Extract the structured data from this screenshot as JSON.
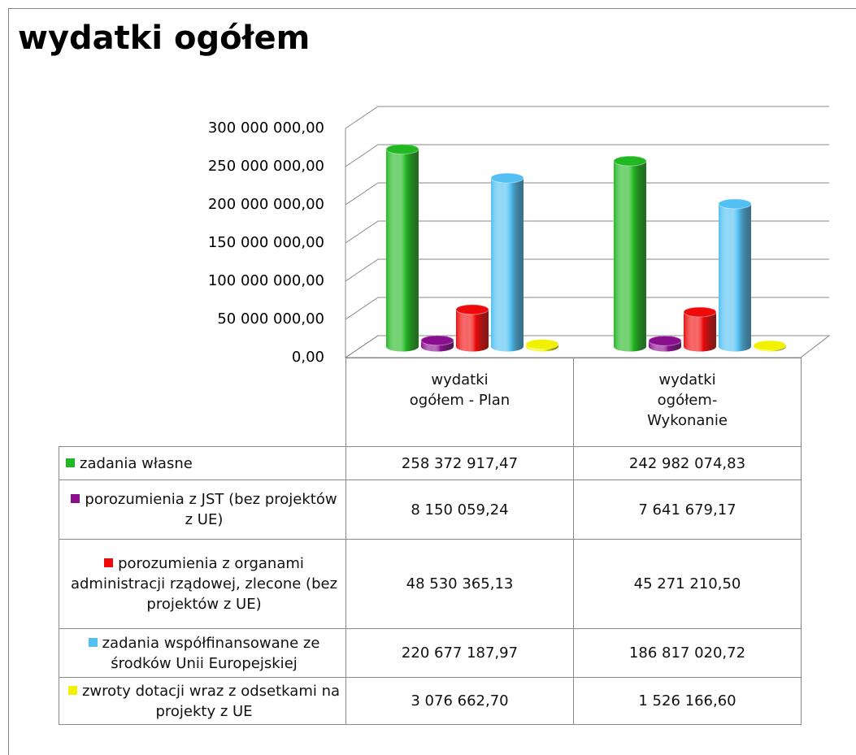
{
  "chart_data": {
    "type": "cylinder_bar",
    "title": "wydatki ogółem",
    "categories": [
      "wydatki ogółem -  Plan",
      "wydatki ogółem- Wykonanie"
    ],
    "series": [
      {
        "name": "zadania własne",
        "color": "#22b822",
        "values": [
          258372917.47,
          242982074.83
        ],
        "value_labels": [
          "258 372 917,47",
          "242 982 074,83"
        ]
      },
      {
        "name": "porozumienia z JST (bez projektów z UE)",
        "color": "#8a0f8f",
        "values": [
          8150059.24,
          7641679.17
        ],
        "value_labels": [
          "8 150 059,24",
          "7 641 679,17"
        ]
      },
      {
        "name": "porozumienia z organami administracji rządowej, zlecone (bez projektów z UE)",
        "color": "#ee0a0a",
        "values": [
          48530365.13,
          45271210.5
        ],
        "value_labels": [
          "48 530 365,13",
          "45 271 210,50"
        ]
      },
      {
        "name": "zadania współfinansowane ze środków Unii Europejskiej",
        "color": "#52c0f2",
        "values": [
          220677187.97,
          186817020.72
        ],
        "value_labels": [
          "220 677 187,97",
          "186 817 020,72"
        ]
      },
      {
        "name": "zwroty dotacji wraz z odsetkami na projekty z UE",
        "color": "#f2f200",
        "values": [
          3076662.7,
          1526166.6
        ],
        "value_labels": [
          "3 076 662,70",
          "1 526 166,60"
        ]
      }
    ],
    "ylim": [
      0,
      300000000
    ],
    "yticks": [
      {
        "value": 0,
        "label": "0,00"
      },
      {
        "value": 50000000,
        "label": "50 000 000,00"
      },
      {
        "value": 100000000,
        "label": "100 000 000,00"
      },
      {
        "value": 150000000,
        "label": "150 000 000,00"
      },
      {
        "value": 200000000,
        "label": "200 000 000,00"
      },
      {
        "value": 250000000,
        "label": "250 000 000,00"
      },
      {
        "value": 300000000,
        "label": "300 000 000,00"
      }
    ],
    "grid": true
  }
}
